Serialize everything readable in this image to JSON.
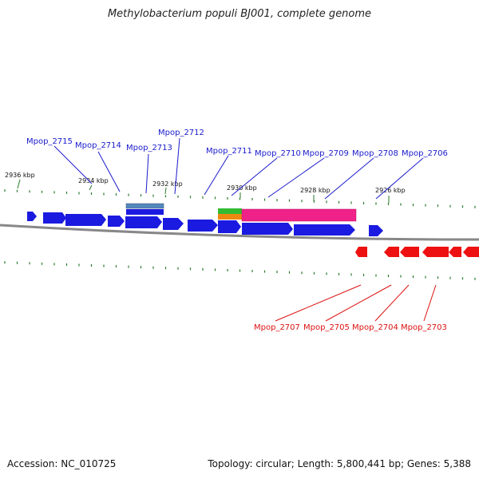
{
  "header": {
    "title": "Methylobacterium populi BJ001, complete genome"
  },
  "footer": {
    "accession": "Accession: NC_010725",
    "topology": "Topology: circular; Length: 5,800,441 bp; Genes: 5,388"
  },
  "colors": {
    "forward_gene": "#1a1ae0",
    "reverse_gene": "#ee1111",
    "forward_label": "#1a1acc",
    "reverse_label": "#dd1111",
    "tick": "#2a7a2a",
    "backbone": "#888888",
    "feature_green": "#33bb33",
    "feature_orange": "#ee8811",
    "feature_magenta": "#ee2288",
    "feature_steelblue": "#5588bb"
  },
  "kbp_labels": [
    "2936 kbp",
    "2934 kbp",
    "2932 kbp",
    "2930 kbp",
    "2928 kbp",
    "2926 kbp"
  ],
  "forward_labels": [
    "Mpop_2715",
    "Mpop_2714",
    "Mpop_2713",
    "Mpop_2712",
    "Mpop_2711",
    "Mpop_2710",
    "Mpop_2709",
    "Mpop_2708",
    "Mpop_2706"
  ],
  "reverse_labels": [
    "Mpop_2707",
    "Mpop_2705",
    "Mpop_2704",
    "Mpop_2703"
  ]
}
